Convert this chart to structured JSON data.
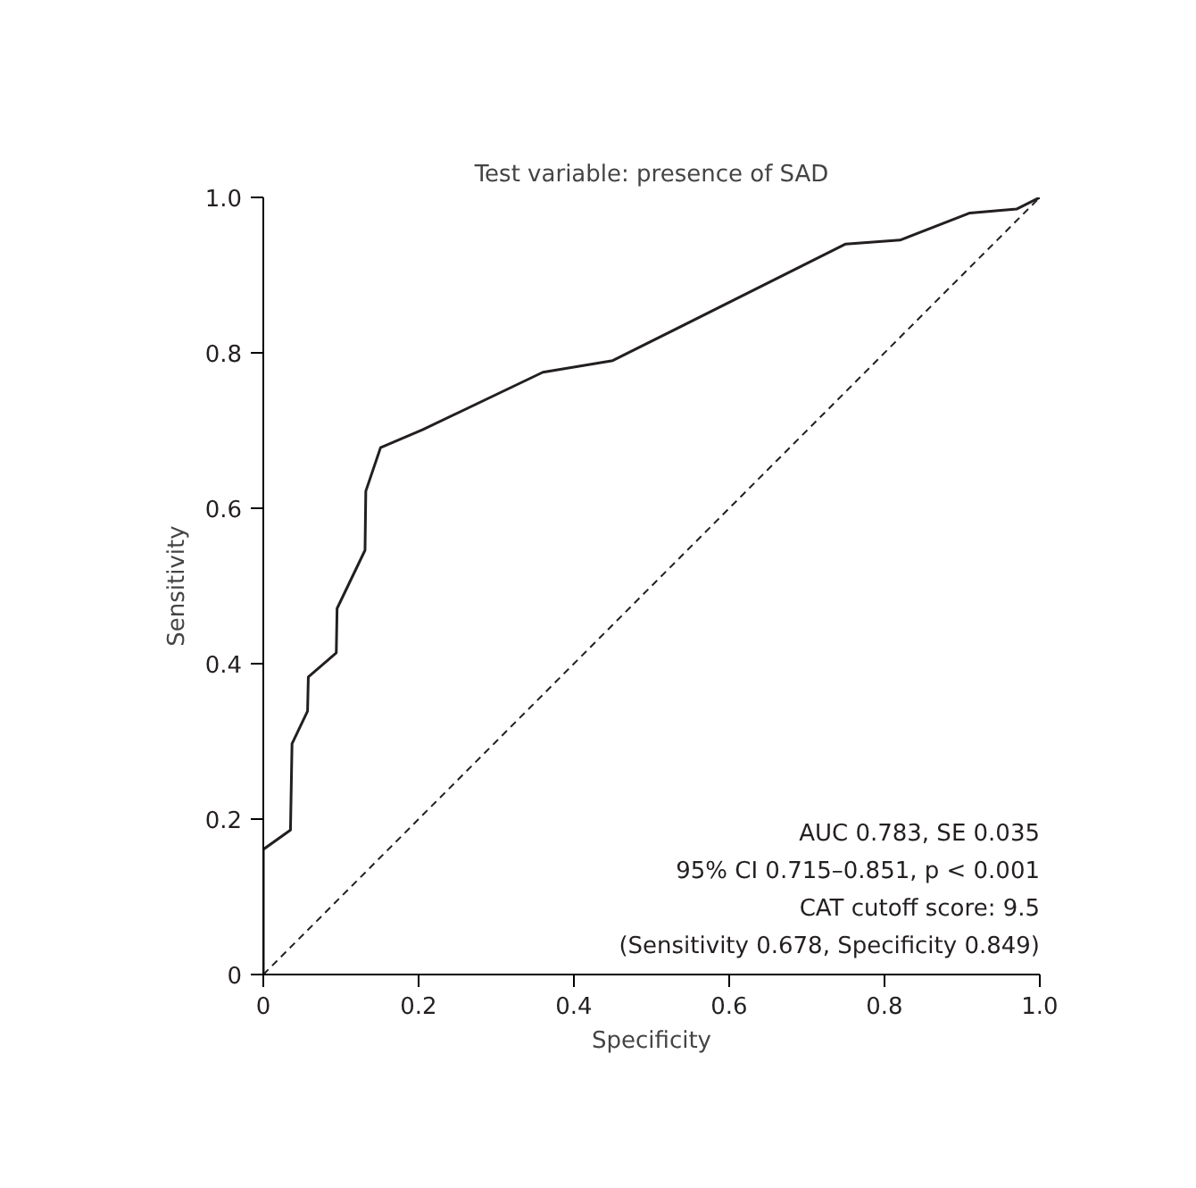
{
  "chart_data": {
    "type": "line",
    "title": "Test variable: presence of SAD",
    "xlabel": "Specificity",
    "ylabel": "Sensitivity",
    "xlim": [
      0,
      1
    ],
    "ylim": [
      0,
      1
    ],
    "xticks": [
      {
        "value": 0,
        "label": "0"
      },
      0.2,
      0.4,
      0.6,
      0.8,
      {
        "value": 1,
        "label": "1.0"
      }
    ],
    "yticks": [
      {
        "value": 0,
        "label": "0"
      },
      0.2,
      0.4,
      0.6,
      0.8,
      {
        "value": 1,
        "label": "1.0"
      }
    ],
    "grid": false,
    "series": [
      {
        "color": "#231f20",
        "line_style": "solid",
        "x": [
          0,
          0,
          0.035,
          0.037,
          0.057,
          0.058,
          0.094,
          0.095,
          0.131,
          0.132,
          0.151,
          0.205,
          0.36,
          0.45,
          0.75,
          0.82,
          0.91,
          0.97,
          1.0
        ],
        "values": [
          0,
          0.161,
          0.186,
          0.297,
          0.339,
          0.383,
          0.414,
          0.471,
          0.546,
          0.622,
          0.678,
          0.701,
          0.775,
          0.79,
          0.94,
          0.945,
          0.98,
          0.985,
          1.0
        ]
      },
      {
        "color": "#231f20",
        "line_style": "dashed",
        "x": [
          0,
          1
        ],
        "values": [
          0,
          1
        ]
      }
    ],
    "annotations": [
      "AUC 0.783, SE 0.035",
      "95% CI 0.715–0.851, p < 0.001",
      "CAT cutoff score: 9.5",
      "(Sensitivity 0.678, Specificity 0.849)"
    ]
  }
}
